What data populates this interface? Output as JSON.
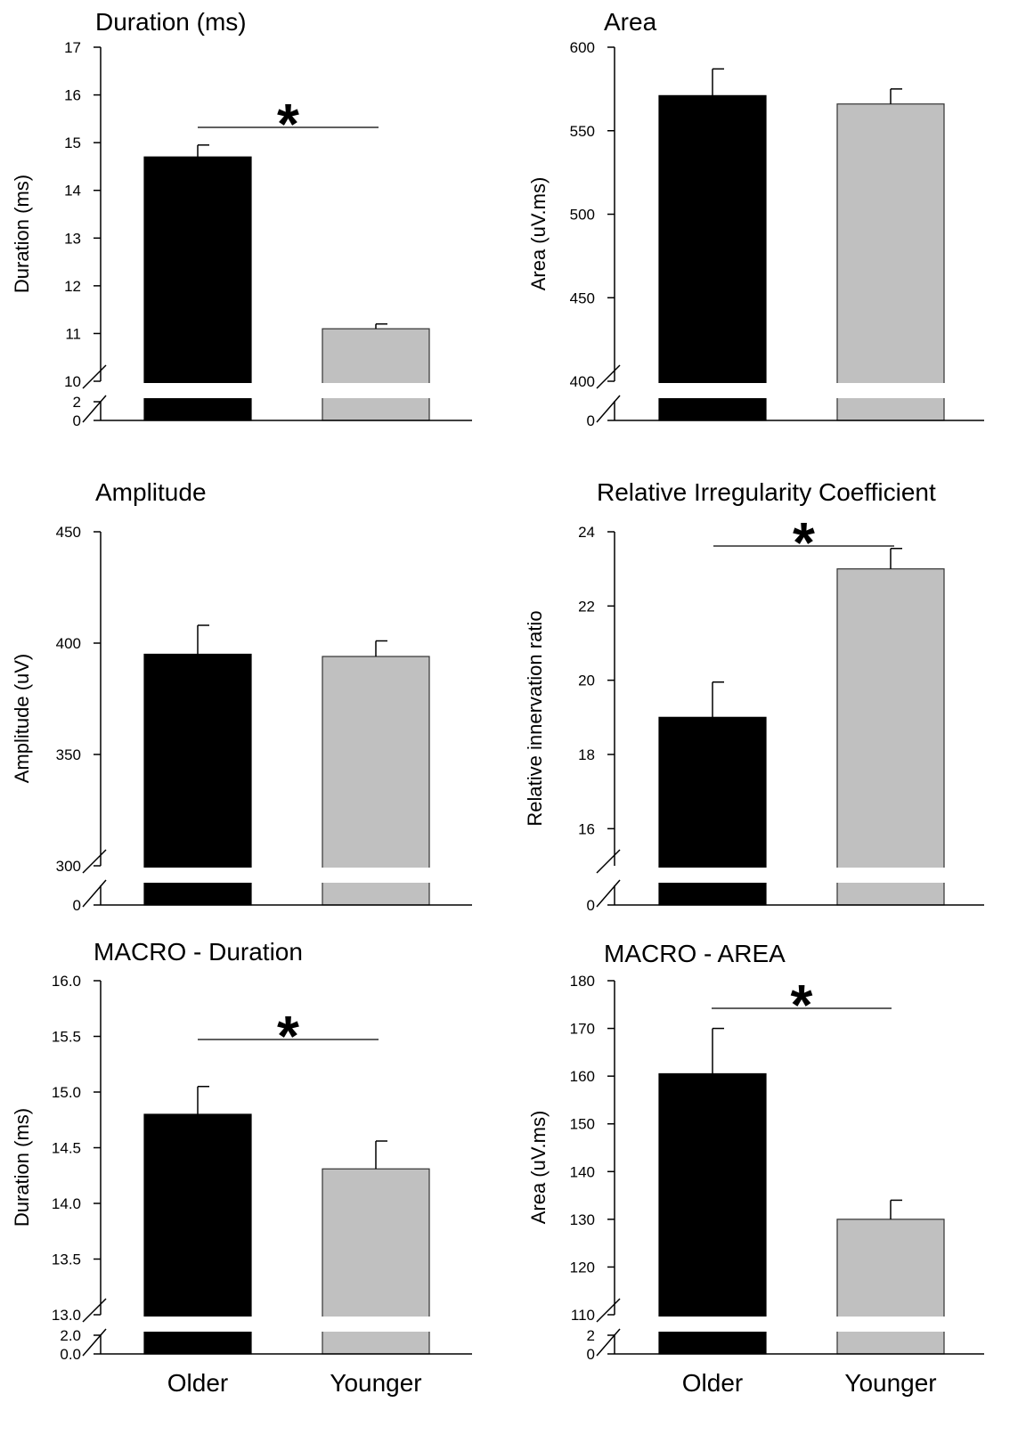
{
  "colors": {
    "older": "#000000",
    "younger": "#c0c0c0",
    "axis": "#000000"
  },
  "chart_data": [
    {
      "type": "bar",
      "title": "Duration (ms)",
      "ylabel": "Duration (ms)",
      "categories": [
        "Older",
        "Younger"
      ],
      "values": [
        14.7,
        11.1
      ],
      "errors": [
        0.25,
        0.1
      ],
      "ylim": [
        10,
        17
      ],
      "yticks": [
        "10",
        "11",
        "12",
        "13",
        "14",
        "15",
        "16",
        "17"
      ],
      "axis_break": {
        "below": [
          "0",
          "2"
        ]
      },
      "significance": "*"
    },
    {
      "type": "bar",
      "title": "Area",
      "ylabel": "Area (uV.ms)",
      "categories": [
        "Older",
        "Younger"
      ],
      "values": [
        571,
        566
      ],
      "errors": [
        16,
        9
      ],
      "ylim": [
        400,
        600
      ],
      "yticks": [
        "400",
        "450",
        "500",
        "550",
        "600"
      ],
      "axis_break": {
        "below": [
          "0"
        ]
      },
      "significance": ""
    },
    {
      "type": "bar",
      "title": "Amplitude",
      "ylabel": "Amplitude (uV)",
      "categories": [
        "Older",
        "Younger"
      ],
      "values": [
        395,
        394
      ],
      "errors": [
        13,
        7
      ],
      "ylim": [
        300,
        450
      ],
      "yticks": [
        "300",
        "350",
        "400",
        "450"
      ],
      "axis_break": {
        "below": [
          "0"
        ]
      },
      "significance": ""
    },
    {
      "type": "bar",
      "title": "Relative Irregularity Coefficient",
      "ylabel": "Relative innervation ratio",
      "categories": [
        "Older",
        "Younger"
      ],
      "values": [
        19.0,
        23.0
      ],
      "errors": [
        0.95,
        0.55
      ],
      "ylim": [
        15,
        24
      ],
      "yticks": [
        "16",
        "18",
        "20",
        "22",
        "24"
      ],
      "axis_break": {
        "below": [
          "0"
        ]
      },
      "significance": "*"
    },
    {
      "type": "bar",
      "title": "MACRO - Duration",
      "ylabel": "Duration (ms)",
      "categories": [
        "Older",
        "Younger"
      ],
      "values": [
        14.8,
        14.31
      ],
      "errors": [
        0.25,
        0.25
      ],
      "ylim": [
        13.0,
        16.0
      ],
      "yticks": [
        "13.0",
        "13.5",
        "14.0",
        "14.5",
        "15.0",
        "15.5",
        "16.0"
      ],
      "axis_break": {
        "below": [
          "0.0",
          "2.0"
        ]
      },
      "significance": "*"
    },
    {
      "type": "bar",
      "title": "MACRO - AREA",
      "ylabel": "Area (uV.ms)",
      "categories": [
        "Older",
        "Younger"
      ],
      "values": [
        160.5,
        130
      ],
      "errors": [
        9.5,
        4
      ],
      "ylim": [
        110,
        180
      ],
      "yticks": [
        "110",
        "120",
        "130",
        "140",
        "150",
        "160",
        "170",
        "180"
      ],
      "axis_break": {
        "below": [
          "0",
          "2"
        ]
      },
      "significance": "*"
    }
  ]
}
